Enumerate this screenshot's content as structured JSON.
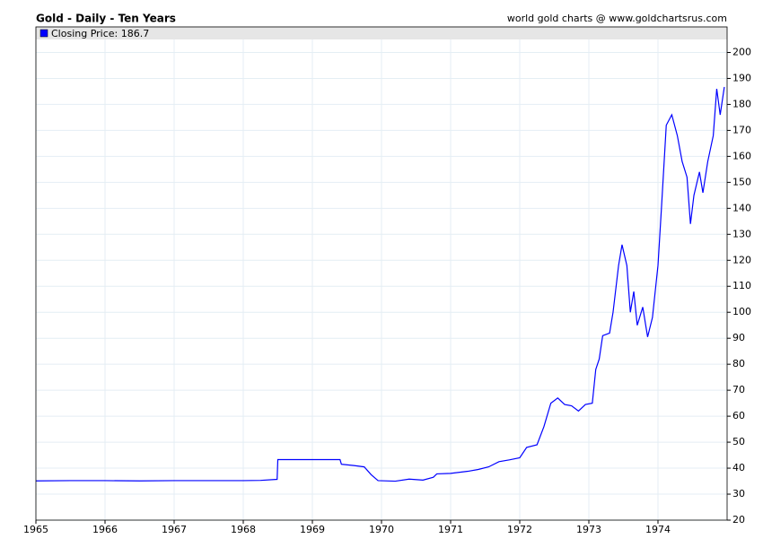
{
  "chart_data": {
    "type": "line",
    "title": "Gold - Daily - Ten Years",
    "source": "world gold charts @ www.goldchartsrus.com",
    "x": [
      1965.0,
      1965.5,
      1966.0,
      1966.5,
      1967.0,
      1967.5,
      1968.0,
      1968.25,
      1968.49,
      1968.5,
      1969.0,
      1969.4,
      1969.42,
      1969.6,
      1969.75,
      1969.85,
      1969.95,
      1970.2,
      1970.4,
      1970.6,
      1970.75,
      1970.8,
      1971.0,
      1971.25,
      1971.4,
      1971.55,
      1971.7,
      1971.85,
      1972.0,
      1972.1,
      1972.25,
      1972.35,
      1972.45,
      1972.55,
      1972.65,
      1972.75,
      1972.85,
      1972.95,
      1973.05,
      1973.1,
      1973.15,
      1973.2,
      1973.3,
      1973.35,
      1973.43,
      1973.48,
      1973.55,
      1973.6,
      1973.65,
      1973.7,
      1973.78,
      1973.85,
      1973.92,
      1974.0,
      1974.05,
      1974.12,
      1974.2,
      1974.28,
      1974.35,
      1974.42,
      1974.47,
      1974.52,
      1974.6,
      1974.65,
      1974.72,
      1974.8,
      1974.85,
      1974.9,
      1974.96
    ],
    "series": [
      {
        "name": "Closing Price: 186.7",
        "color": "#0000ff",
        "values": [
          35.1,
          35.2,
          35.2,
          35.1,
          35.2,
          35.2,
          35.2,
          35.3,
          35.7,
          43.3,
          43.3,
          43.3,
          41.5,
          41.0,
          40.5,
          37.5,
          35.2,
          35.0,
          35.8,
          35.4,
          36.5,
          37.8,
          38.0,
          38.8,
          39.5,
          40.5,
          42.5,
          43.2,
          44.0,
          48.0,
          49.0,
          56.0,
          65.0,
          67.0,
          64.5,
          64.0,
          62.0,
          64.5,
          65.0,
          78.0,
          82.0,
          91.0,
          92.0,
          100.0,
          118.0,
          126.0,
          118.0,
          100.0,
          108.0,
          95.0,
          102.0,
          90.5,
          98.0,
          118.0,
          140.0,
          172.0,
          176.0,
          168.0,
          158.0,
          152.0,
          134.0,
          145.0,
          154.0,
          146.0,
          158.0,
          168.0,
          186.0,
          176.0,
          186.7
        ]
      }
    ],
    "xlim": [
      1965,
      1975
    ],
    "xticks": [
      1965,
      1966,
      1967,
      1968,
      1969,
      1970,
      1971,
      1972,
      1973,
      1974
    ],
    "ylim": [
      20,
      205
    ],
    "yticks": [
      20,
      30,
      40,
      50,
      60,
      70,
      80,
      90,
      100,
      110,
      120,
      130,
      140,
      150,
      160,
      170,
      180,
      190,
      200
    ],
    "grid": true,
    "legend": "top-left"
  }
}
